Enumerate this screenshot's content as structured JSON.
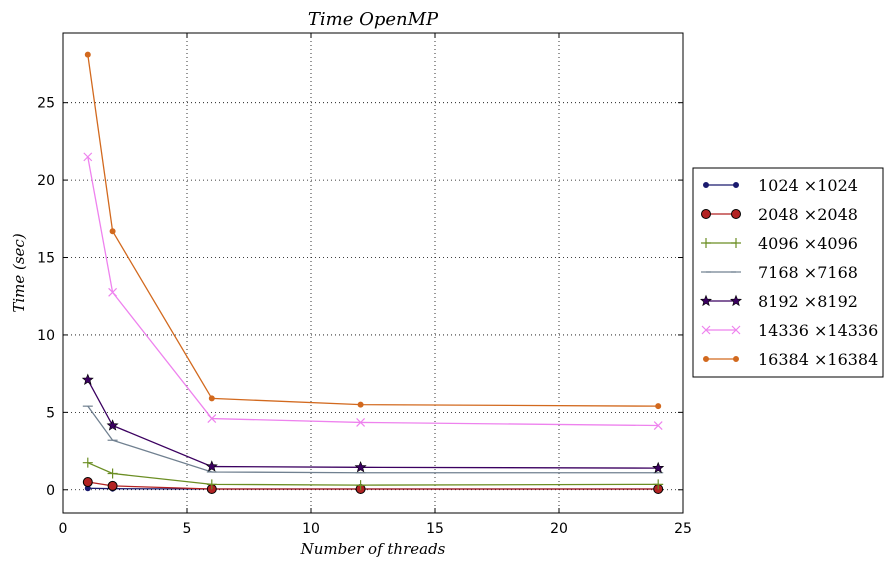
{
  "chart_data": {
    "type": "line",
    "title": "Time OpenMP",
    "xlabel": "Number of threads",
    "ylabel": "Time (sec)",
    "xlim": [
      0,
      25
    ],
    "ylim": [
      -1.5,
      29.5
    ],
    "xticks": [
      0,
      5,
      10,
      15,
      20,
      25
    ],
    "yticks": [
      0,
      5,
      10,
      15,
      20,
      25
    ],
    "grid": true,
    "legend_position": "right",
    "x": [
      1,
      2,
      6,
      12,
      24
    ],
    "series": [
      {
        "name": "1024 ×1024",
        "values": [
          0.1,
          0.07,
          0.05,
          0.05,
          0.05
        ],
        "color": "#1a1a6e",
        "marker": "point"
      },
      {
        "name": "2048 ×2048",
        "values": [
          0.5,
          0.25,
          0.05,
          0.05,
          0.05
        ],
        "color": "#b22222",
        "marker": "circle"
      },
      {
        "name": "4096 ×4096",
        "values": [
          1.75,
          1.05,
          0.35,
          0.3,
          0.35
        ],
        "color": "#6b8e23",
        "marker": "plus"
      },
      {
        "name": "7168 ×7168",
        "values": [
          5.4,
          3.2,
          1.15,
          1.1,
          1.1
        ],
        "color": "#708090",
        "marker": "hline"
      },
      {
        "name": "8192 ×8192",
        "values": [
          7.1,
          4.15,
          1.5,
          1.45,
          1.4
        ],
        "color": "#3b0060",
        "marker": "star"
      },
      {
        "name": "14336 ×14336",
        "values": [
          21.5,
          12.75,
          4.6,
          4.35,
          4.15
        ],
        "color": "#ee82ee",
        "marker": "x"
      },
      {
        "name": "16384 ×16384",
        "values": [
          28.1,
          16.7,
          5.9,
          5.5,
          5.4
        ],
        "color": "#d2691e",
        "marker": "point"
      }
    ]
  }
}
